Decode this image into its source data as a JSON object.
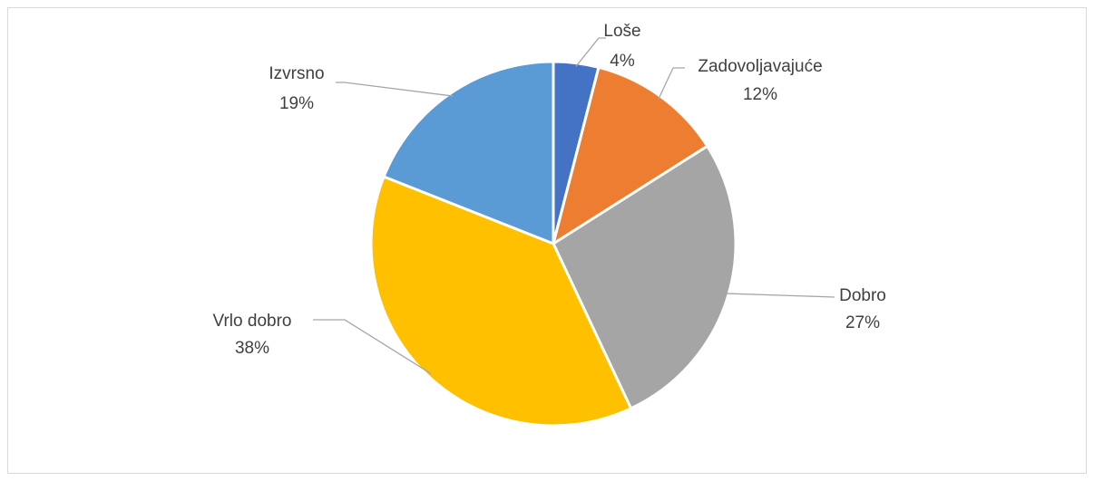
{
  "chart_data": {
    "type": "pie",
    "categories": [
      "Loše",
      "Zadovoljavajuće",
      "Dobro",
      "Vrlo dobro",
      "Izvrsno"
    ],
    "values": [
      4,
      12,
      27,
      38,
      19
    ],
    "value_labels": [
      "4%",
      "12%",
      "27%",
      "38%",
      "19%"
    ],
    "colors": [
      "#4472c4",
      "#ed7d31",
      "#a5a5a5",
      "#ffc000",
      "#5b9bd5"
    ]
  }
}
